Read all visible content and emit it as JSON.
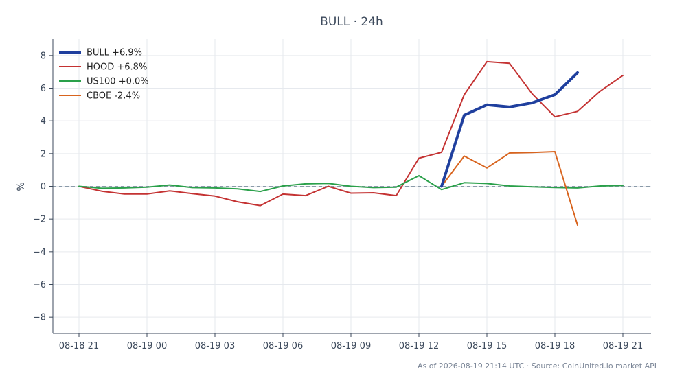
{
  "chart_data": {
    "type": "line",
    "title": "BULL · 24h",
    "xlabel": "",
    "ylabel": "%",
    "ylim": [
      -9,
      9
    ],
    "yticks": [
      -8,
      -6,
      -4,
      -2,
      0,
      2,
      4,
      6,
      8
    ],
    "ytick_labels": [
      "−8",
      "−6",
      "−4",
      "−2",
      "0",
      "2",
      "4",
      "6",
      "8"
    ],
    "x_hours": [
      "08-18 21",
      "08-18 22",
      "08-18 23",
      "08-19 00",
      "08-19 01",
      "08-19 02",
      "08-19 03",
      "08-19 04",
      "08-19 05",
      "08-19 06",
      "08-19 07",
      "08-19 08",
      "08-19 09",
      "08-19 10",
      "08-19 11",
      "08-19 12",
      "08-19 13",
      "08-19 14",
      "08-19 15",
      "08-19 16",
      "08-19 17",
      "08-19 18",
      "08-19 19",
      "08-19 20",
      "08-19 21"
    ],
    "xticks": [
      "08-18 21",
      "08-19 00",
      "08-19 03",
      "08-19 06",
      "08-19 09",
      "08-19 12",
      "08-19 15",
      "08-19 18",
      "08-19 21"
    ],
    "grid": true,
    "zero_line": true,
    "legend_position": "top-left",
    "series": [
      {
        "name": "BULL +6.9%",
        "color": "#1f3f9e",
        "width": 4,
        "x": [
          "08-19 13",
          "08-19 14",
          "08-19 15",
          "08-19 16",
          "08-19 17",
          "08-19 18",
          "08-19 19"
        ],
        "values": [
          0.0,
          4.35,
          4.98,
          4.85,
          5.1,
          5.6,
          6.95
        ]
      },
      {
        "name": "HOOD +6.8%",
        "color": "#c43232",
        "width": 2,
        "x": [
          "08-18 21",
          "08-18 22",
          "08-18 23",
          "08-19 00",
          "08-19 01",
          "08-19 02",
          "08-19 03",
          "08-19 04",
          "08-19 05",
          "08-19 06",
          "08-19 07",
          "08-19 08",
          "08-19 09",
          "08-19 10",
          "08-19 11",
          "08-19 12",
          "08-19 13",
          "08-19 14",
          "08-19 15",
          "08-19 16",
          "08-19 17",
          "08-19 18",
          "08-19 19",
          "08-19 20",
          "08-19 21"
        ],
        "values": [
          0.0,
          -0.3,
          -0.47,
          -0.47,
          -0.28,
          -0.45,
          -0.6,
          -0.95,
          -1.18,
          -0.48,
          -0.57,
          0.0,
          -0.42,
          -0.4,
          -0.57,
          1.72,
          2.08,
          5.6,
          7.62,
          7.52,
          5.65,
          4.25,
          4.58,
          5.82,
          6.78
        ]
      },
      {
        "name": "US100 +0.0%",
        "color": "#2aa04a",
        "width": 2,
        "x": [
          "08-18 21",
          "08-18 22",
          "08-18 23",
          "08-19 00",
          "08-19 01",
          "08-19 02",
          "08-19 03",
          "08-19 04",
          "08-19 05",
          "08-19 06",
          "08-19 07",
          "08-19 08",
          "08-19 09",
          "08-19 10",
          "08-19 11",
          "08-19 12",
          "08-19 13",
          "08-19 14",
          "08-19 15",
          "08-19 16",
          "08-19 17",
          "08-19 18",
          "08-19 19",
          "08-19 20",
          "08-19 21"
        ],
        "values": [
          0.0,
          -0.12,
          -0.1,
          -0.05,
          0.08,
          -0.08,
          -0.1,
          -0.16,
          -0.32,
          0.02,
          0.15,
          0.18,
          0.0,
          -0.08,
          -0.05,
          0.65,
          -0.2,
          0.22,
          0.17,
          0.02,
          -0.03,
          -0.07,
          -0.1,
          0.02,
          0.05
        ]
      },
      {
        "name": "CBOE -2.4%",
        "color": "#d8641e",
        "width": 2,
        "x": [
          "08-19 13",
          "08-19 14",
          "08-19 15",
          "08-19 16",
          "08-19 17",
          "08-19 18",
          "08-19 19"
        ],
        "values": [
          0.0,
          1.85,
          1.12,
          2.04,
          2.07,
          2.12,
          -2.38
        ]
      }
    ]
  },
  "footer": "As of 2026-08-19 21:14 UTC · Source: CoinUnited.io market API"
}
